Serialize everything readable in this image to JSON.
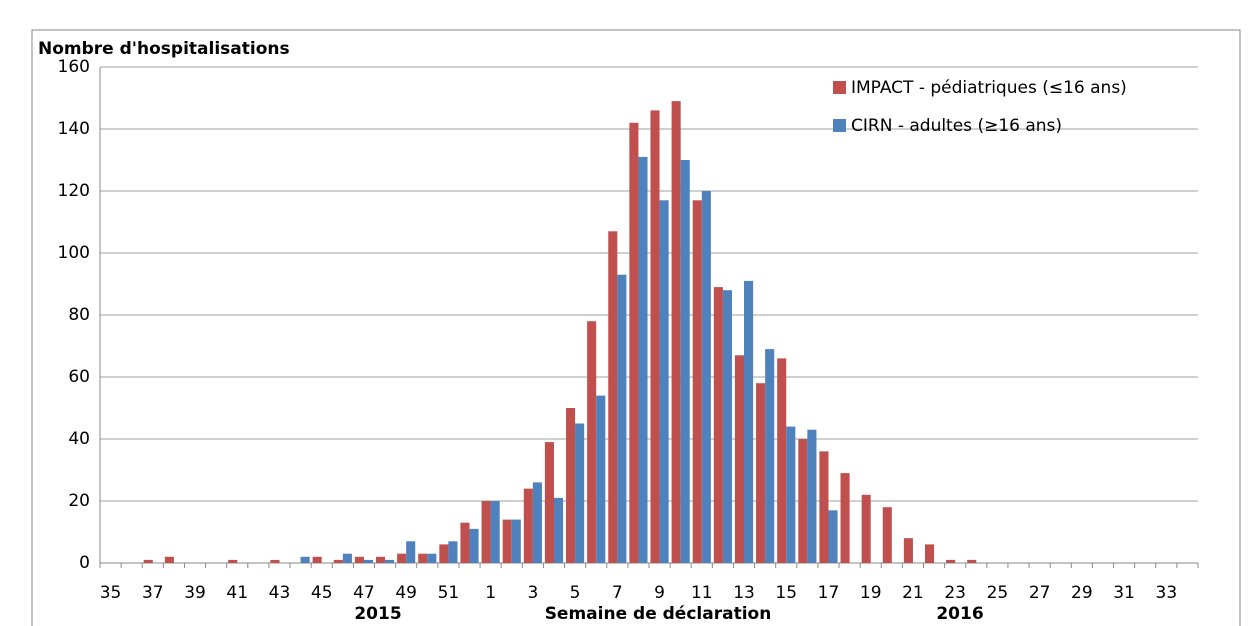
{
  "chart_data": {
    "type": "bar",
    "title": "Nombre d'hospitalisations",
    "x_label": "Semaine de déclaration",
    "annotations": [
      "2015",
      "2016"
    ],
    "categories": [
      "35",
      null,
      "37",
      null,
      "39",
      null,
      "41",
      null,
      "43",
      null,
      "45",
      null,
      "47",
      null,
      "49",
      null,
      "51",
      null,
      "1",
      null,
      "3",
      null,
      "5",
      null,
      "7",
      null,
      "9",
      null,
      "11",
      null,
      "13",
      null,
      "15",
      null,
      "17",
      null,
      "19",
      null,
      "21",
      null,
      "23",
      null,
      "25",
      null,
      "27",
      null,
      "29",
      null,
      "31",
      null,
      "33",
      null
    ],
    "series": [
      {
        "name": "IMPACT - pédiatriques (≤16 ans)",
        "color": "#c0504d",
        "values": [
          0,
          0,
          1,
          2,
          0,
          0,
          1,
          0,
          1,
          0,
          2,
          1,
          2,
          2,
          3,
          3,
          6,
          13,
          20,
          14,
          24,
          39,
          50,
          78,
          107,
          142,
          146,
          149,
          117,
          89,
          67,
          58,
          66,
          40,
          36,
          29,
          22,
          18,
          8,
          6,
          1,
          1,
          0,
          0,
          0,
          0,
          0,
          0,
          0,
          0,
          0,
          0
        ]
      },
      {
        "name": "CIRN - adultes (≥16 ans)",
        "color": "#4f81bd",
        "values": [
          0,
          0,
          0,
          0,
          0,
          0,
          0,
          0,
          0,
          2,
          0,
          3,
          1,
          1,
          7,
          3,
          7,
          11,
          20,
          14,
          26,
          21,
          45,
          54,
          93,
          131,
          117,
          130,
          120,
          88,
          91,
          69,
          44,
          43,
          17,
          0,
          0,
          0,
          0,
          0,
          0,
          0,
          0,
          0,
          0,
          0,
          0,
          0,
          0,
          0,
          0,
          0
        ]
      }
    ],
    "ylim": [
      0,
      160
    ],
    "yticks": [
      0,
      20,
      40,
      60,
      80,
      100,
      120,
      140,
      160
    ],
    "grid": true,
    "legend": "top-right"
  }
}
